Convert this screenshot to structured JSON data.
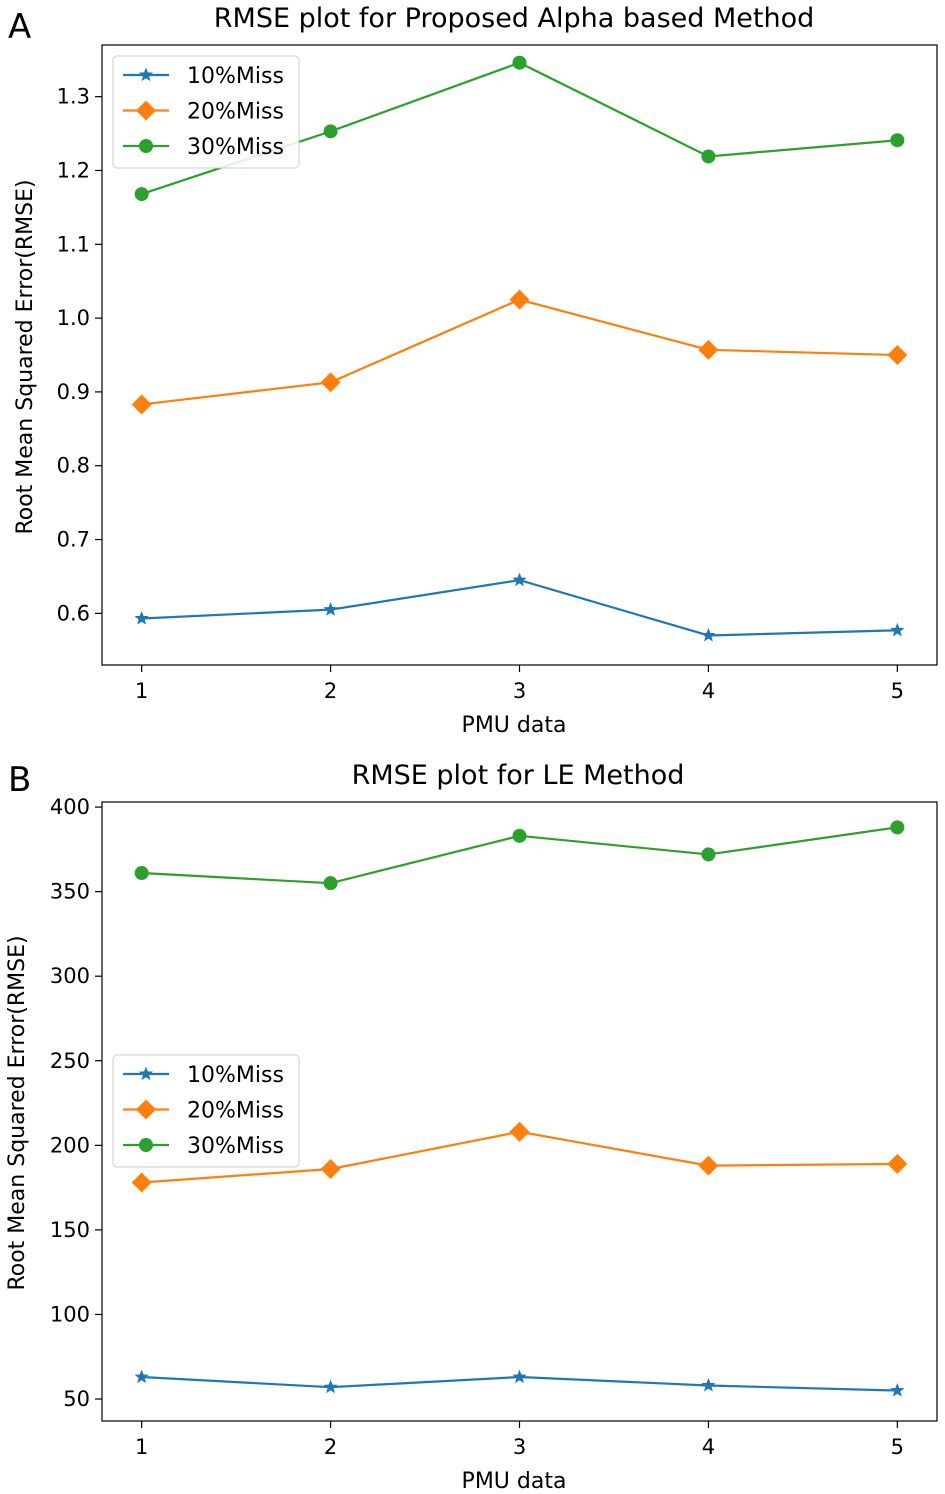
{
  "chart_data": [
    {
      "type": "line",
      "panel": "A",
      "title": "RMSE plot for Proposed Alpha based Method",
      "xlabel": "PMU data",
      "ylabel": "Root Mean Squared Error(RMSE)",
      "x": [
        1,
        2,
        3,
        4,
        5
      ],
      "xlim": [
        0.79,
        5.21
      ],
      "ylim": [
        0.53,
        1.37
      ],
      "yticks": [
        0.6,
        0.7,
        0.8,
        0.9,
        1.0,
        1.1,
        1.2,
        1.3
      ],
      "ytick_labels": [
        "0.6",
        "0.7",
        "0.8",
        "0.9",
        "1.0",
        "1.1",
        "1.2",
        "1.3"
      ],
      "legend_position": "upper-left",
      "grid": false,
      "series": [
        {
          "name": "10%Miss",
          "color": "#1f77b4",
          "marker": "star",
          "values": [
            0.593,
            0.605,
            0.645,
            0.57,
            0.577
          ]
        },
        {
          "name": "20%Miss",
          "color": "#ff7f0e",
          "marker": "diamond",
          "values": [
            0.883,
            0.913,
            1.025,
            0.957,
            0.95
          ]
        },
        {
          "name": "30%Miss",
          "color": "#2ca02c",
          "marker": "circle",
          "values": [
            1.168,
            1.253,
            1.346,
            1.219,
            1.241
          ]
        }
      ]
    },
    {
      "type": "line",
      "panel": "B",
      "title": "RMSE plot for LE Method",
      "xlabel": "PMU data",
      "ylabel": "Root Mean Squared Error(RMSE)",
      "x": [
        1,
        2,
        3,
        4,
        5
      ],
      "xlim": [
        0.79,
        5.21
      ],
      "ylim": [
        37.0,
        403.0
      ],
      "yticks": [
        50,
        100,
        150,
        200,
        250,
        300,
        350,
        400
      ],
      "ytick_labels": [
        "50",
        "100",
        "150",
        "200",
        "250",
        "300",
        "350",
        "400"
      ],
      "legend_position": "center-left",
      "grid": false,
      "series": [
        {
          "name": "10%Miss",
          "color": "#1f77b4",
          "marker": "star",
          "values": [
            63,
            57,
            63,
            58,
            55
          ]
        },
        {
          "name": "20%Miss",
          "color": "#ff7f0e",
          "marker": "diamond",
          "values": [
            178,
            186,
            208,
            188,
            189
          ]
        },
        {
          "name": "30%Miss",
          "color": "#2ca02c",
          "marker": "circle",
          "values": [
            361,
            355,
            383,
            372,
            388
          ]
        }
      ]
    }
  ]
}
